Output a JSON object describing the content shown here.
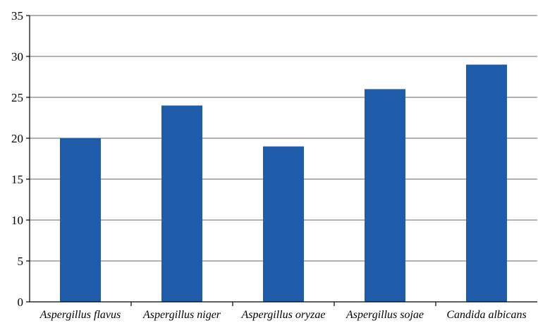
{
  "chart_data": {
    "type": "bar",
    "categories": [
      "Aspergillus flavus",
      "Aspergillus niger",
      "Aspergillus oryzae",
      "Aspergillus sojae",
      "Candida albicans"
    ],
    "values": [
      20,
      24,
      19,
      26,
      29
    ],
    "title": "",
    "xlabel": "",
    "ylabel": "",
    "ylim": [
      0,
      35
    ],
    "yticks": [
      0,
      5,
      10,
      15,
      20,
      25,
      30,
      35
    ],
    "grid": true,
    "legend": "none",
    "colors": {
      "bar": "#1f5caa",
      "grid": "#999999",
      "axis": "#000000"
    }
  }
}
